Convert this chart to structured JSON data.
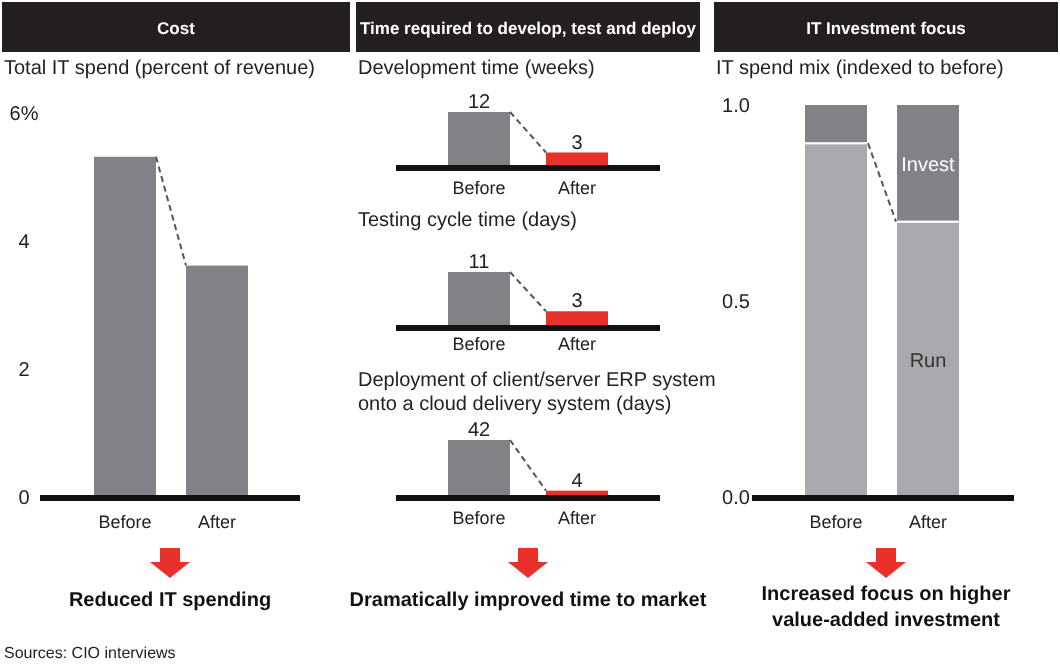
{
  "chart_data": [
    {
      "type": "bar",
      "title": "Cost",
      "ylabel": "Total IT spend (percent of revenue)",
      "categories": [
        "Before",
        "After"
      ],
      "values": [
        5.3,
        3.6
      ],
      "color": "#808285",
      "ylim": [
        0,
        6
      ],
      "yticks": [
        0,
        2,
        4,
        {
          "value": 6,
          "label": "6%"
        }
      ],
      "annotations": [
        "Reduced IT spending",
        "Sources: CIO interviews"
      ]
    },
    {
      "type": "bar",
      "title": "Time required to develop, test and deploy",
      "ylabel": "Development time (weeks)",
      "categories": [
        "Before",
        "After"
      ],
      "values": [
        12,
        3
      ],
      "colors": [
        "#808285",
        "#e8312a"
      ],
      "data_labels": true,
      "tick_labels": "x"
    },
    {
      "type": "bar",
      "ylabel": "Testing cycle time (days)",
      "categories": [
        "Before",
        "After"
      ],
      "values": [
        11,
        3
      ],
      "colors": [
        "#808285",
        "#e8312a"
      ],
      "data_labels": true,
      "tick_labels": "x"
    },
    {
      "type": "bar",
      "ylabel": "Deployment of client/server ERP system onto a cloud delivery system (days)",
      "categories": [
        "Before",
        "After"
      ],
      "values": [
        42,
        4
      ],
      "colors": [
        "#808285",
        "#e8312a"
      ],
      "data_labels": true,
      "tick_labels": "x",
      "annotations": [
        "Dramatically improved time to market"
      ]
    },
    {
      "type": "bar",
      "title": "IT Investment focus",
      "ylabel": "IT spend mix (indexed to before)",
      "categories": [
        "Before",
        "After"
      ],
      "stacked": true,
      "ylim": [
        0,
        1
      ],
      "yticks": [
        {
          "value": 0,
          "label": "0.0"
        },
        0.5,
        {
          "value": 1,
          "label": "1.0"
        }
      ],
      "series": [
        {
          "name": "Run",
          "color": "#a7a9ac",
          "values": [
            0.9,
            0.7
          ]
        },
        {
          "name": "Invest",
          "color": "#808285",
          "values": [
            0.1,
            0.3
          ]
        }
      ],
      "annotations": [
        "Increased focus on higher value-added investment"
      ]
    }
  ]
}
